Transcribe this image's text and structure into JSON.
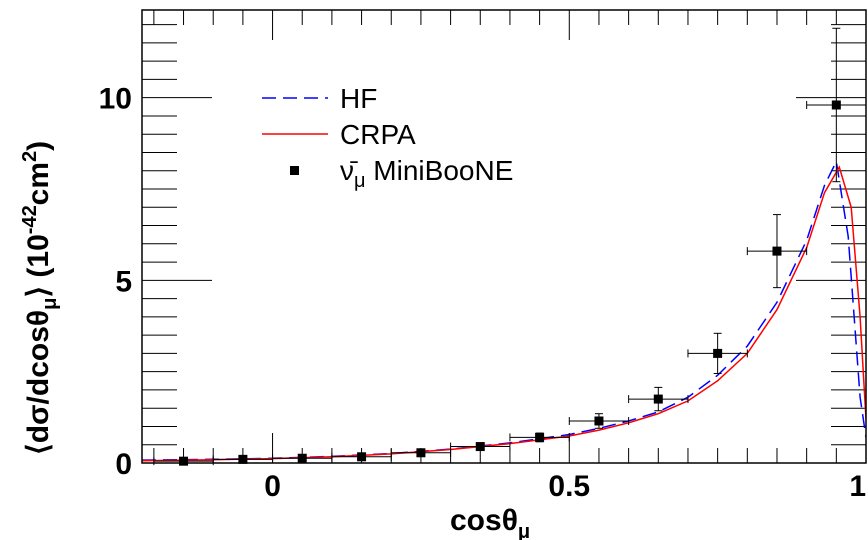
{
  "chart_data": {
    "type": "line",
    "xlabel": "cosθ",
    "xlabel_sub": "μ",
    "ylabel": "⟨dσ/dcosθ",
    "ylabel_sub": "μ",
    "ylabel_close": "⟩ (10",
    "ylabel_sup": "-42",
    "ylabel_unit": "cm",
    "ylabel_unit_sup": "2",
    "ylabel_end": ")",
    "xlim": [
      -0.22,
      1.0
    ],
    "ylim": [
      0,
      12.4
    ],
    "x_ticks": [
      {
        "value": 0,
        "label": "0"
      },
      {
        "value": 0.5,
        "label": "0.5"
      },
      {
        "value": 1,
        "label": "1"
      }
    ],
    "y_ticks": [
      {
        "value": 0,
        "label": "0"
      },
      {
        "value": 5,
        "label": "5"
      },
      {
        "value": 10,
        "label": "10"
      }
    ],
    "legend_position": "top-left",
    "series": [
      {
        "name": "HF",
        "style": "dashed",
        "color": "#0000ff",
        "x": [
          -0.22,
          -0.1,
          0.0,
          0.1,
          0.2,
          0.3,
          0.4,
          0.5,
          0.55,
          0.6,
          0.65,
          0.7,
          0.75,
          0.8,
          0.85,
          0.9,
          0.93,
          0.95,
          0.97,
          0.99,
          1.0
        ],
        "y": [
          0.08,
          0.1,
          0.13,
          0.18,
          0.26,
          0.38,
          0.55,
          0.78,
          0.95,
          1.15,
          1.4,
          1.8,
          2.4,
          3.2,
          4.4,
          6.1,
          7.6,
          8.25,
          6.2,
          1.8,
          0.7
        ]
      },
      {
        "name": "CRPA",
        "style": "solid",
        "color": "#ff0000",
        "x": [
          -0.22,
          -0.1,
          0.0,
          0.1,
          0.2,
          0.3,
          0.4,
          0.5,
          0.55,
          0.6,
          0.65,
          0.7,
          0.75,
          0.8,
          0.85,
          0.9,
          0.93,
          0.955,
          0.975,
          0.99,
          1.0
        ],
        "y": [
          0.06,
          0.09,
          0.12,
          0.17,
          0.25,
          0.37,
          0.53,
          0.74,
          0.9,
          1.1,
          1.35,
          1.7,
          2.25,
          3.0,
          4.2,
          5.9,
          7.4,
          8.1,
          7.0,
          4.0,
          1.2
        ]
      },
      {
        "name": "ν̄",
        "name_sub": "μ",
        "name_rest": " MiniBooNE",
        "style": "markers",
        "color": "#000000",
        "x": [
          -0.15,
          -0.05,
          0.05,
          0.15,
          0.25,
          0.35,
          0.45,
          0.55,
          0.65,
          0.75,
          0.85,
          0.95
        ],
        "y": [
          0.05,
          0.1,
          0.13,
          0.17,
          0.28,
          0.45,
          0.7,
          1.15,
          1.75,
          3.0,
          5.8,
          9.8
        ],
        "yerr": [
          0.03,
          0.04,
          0.05,
          0.06,
          0.07,
          0.09,
          0.12,
          0.2,
          0.32,
          0.55,
          1.0,
          2.1
        ]
      }
    ]
  }
}
